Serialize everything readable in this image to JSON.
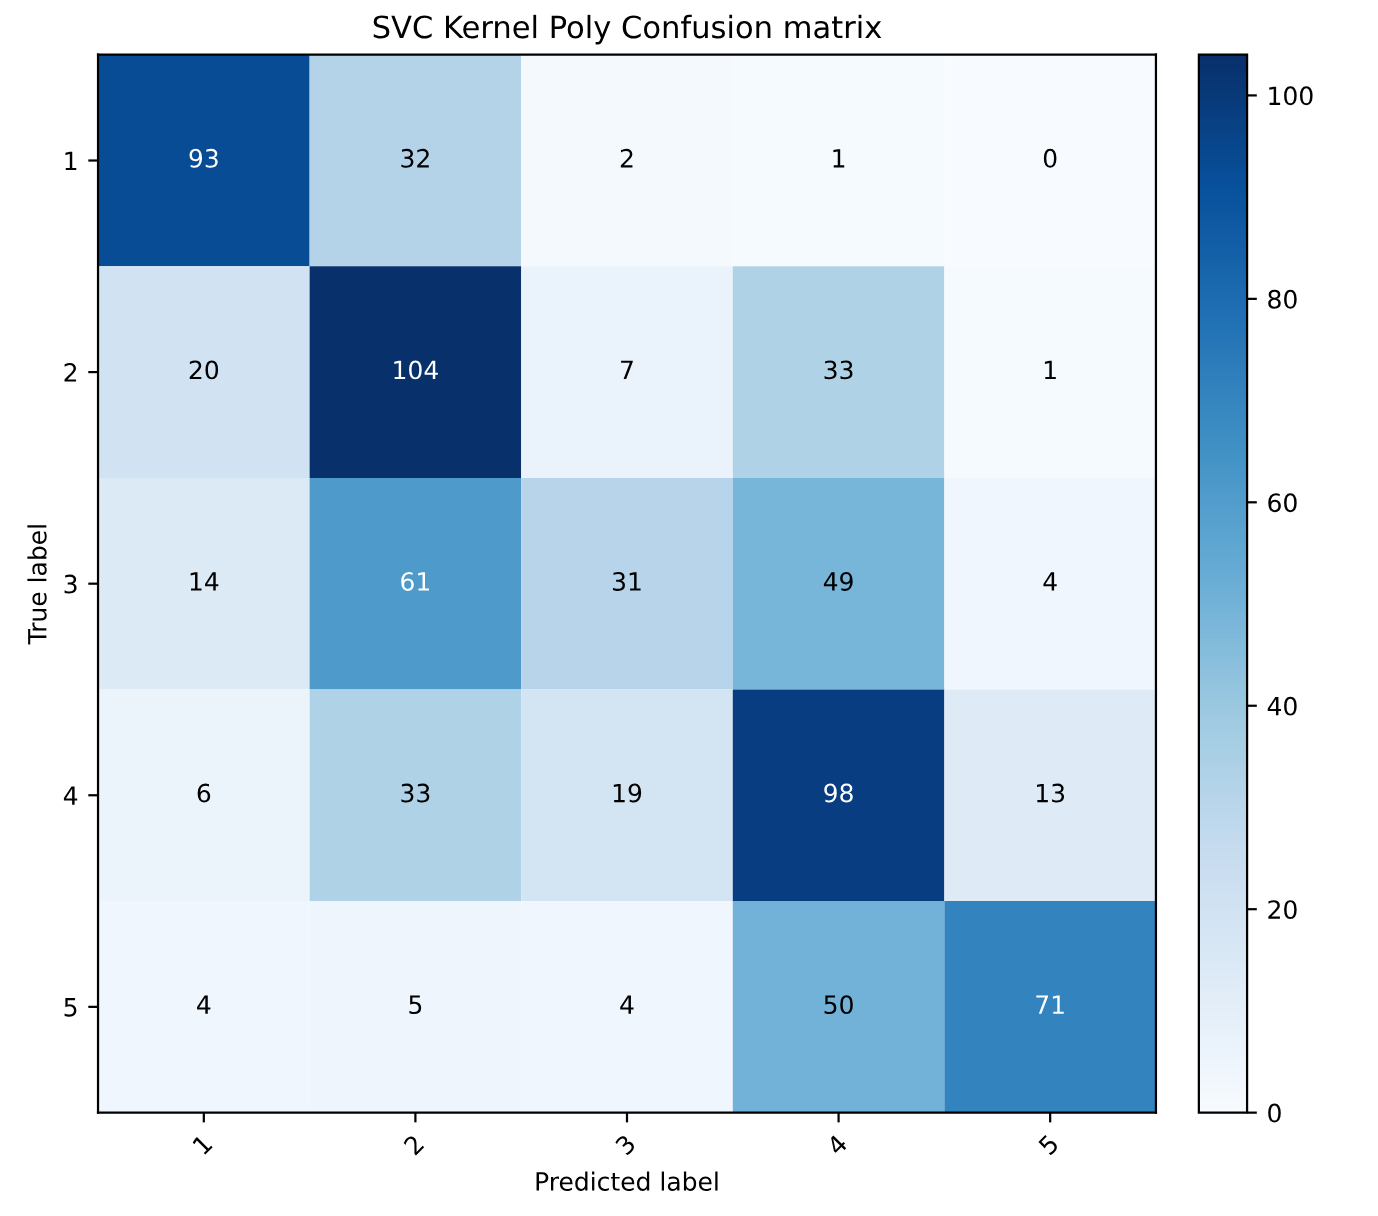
{
  "chart_data": {
    "type": "heatmap",
    "title": "SVC Kernel Poly Confusion matrix",
    "xlabel": "Predicted label",
    "ylabel": "True label",
    "categories": [
      "1",
      "2",
      "3",
      "4",
      "5"
    ],
    "y_categories": [
      "1",
      "2",
      "3",
      "4",
      "5"
    ],
    "cells": [
      [
        93,
        32,
        2,
        1,
        0
      ],
      [
        20,
        104,
        7,
        33,
        1
      ],
      [
        14,
        61,
        31,
        49,
        4
      ],
      [
        6,
        33,
        19,
        98,
        13
      ],
      [
        4,
        5,
        4,
        50,
        71
      ]
    ],
    "clim": [
      0,
      104
    ],
    "cticks": [
      0,
      20,
      40,
      60,
      80,
      100
    ],
    "data_labels": true,
    "grid": false
  }
}
